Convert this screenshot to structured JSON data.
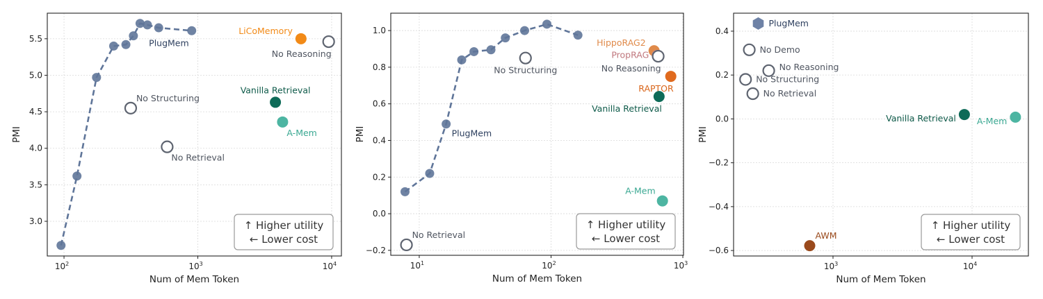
{
  "figure": {
    "note_line1": "↑ Higher utility",
    "note_line2": "← Lower cost"
  },
  "chart_data": [
    {
      "type": "scatter",
      "title": "",
      "xlabel": "Num of Mem Token",
      "ylabel": "PMI",
      "xscale": "log",
      "xlim_log10": [
        1.875,
        4.073
      ],
      "ylim": [
        2.525,
        5.85
      ],
      "xticks": [
        {
          "value": 100,
          "label": "10",
          "exp": "2"
        },
        {
          "value": 1000,
          "label": "10",
          "exp": "3"
        },
        {
          "value": 10000,
          "label": "10",
          "exp": "4"
        }
      ],
      "yticks": [
        3.0,
        3.5,
        4.0,
        4.5,
        5.0,
        5.5
      ],
      "ytick_labels": [
        "3.0",
        "3.5",
        "4.0",
        "4.5",
        "5.0",
        "5.5"
      ],
      "grid": true,
      "annotation_box_position": "bottom-right",
      "curve": {
        "name": "PlugMem",
        "color": "#5f7599",
        "label_color": "#2d3f5e",
        "x": [
          95,
          125,
          175,
          235,
          290,
          330,
          370,
          420,
          510,
          900
        ],
        "y": [
          2.67,
          3.62,
          4.97,
          5.4,
          5.42,
          5.54,
          5.71,
          5.69,
          5.65,
          5.61
        ],
        "label_at_point": 9,
        "label_anchor": "below-left"
      },
      "points": [
        {
          "name": "LiCoMemory",
          "x": 5900,
          "y": 5.5,
          "style": "filled",
          "color": "#f28a17",
          "label_color": "#f28a17",
          "label_pos": "left-up"
        },
        {
          "name": "No Reasoning",
          "x": 9500,
          "y": 5.46,
          "style": "hollow",
          "color": "#5e6470",
          "label_color": "#4f5560",
          "label_pos": "below-left"
        },
        {
          "name": "Vanilla Retrieval",
          "x": 3800,
          "y": 4.63,
          "style": "filled",
          "color": "#0e6b58",
          "label_color": "#0e5a49",
          "label_pos": "above"
        },
        {
          "name": "A-Mem",
          "x": 4300,
          "y": 4.36,
          "style": "filled",
          "color": "#4db5a2",
          "label_color": "#3aa892",
          "label_pos": "below-right"
        },
        {
          "name": "No Structuring",
          "x": 315,
          "y": 4.55,
          "style": "hollow",
          "color": "#5e6470",
          "label_color": "#4f5560",
          "label_pos": "above-right"
        },
        {
          "name": "No Retrieval",
          "x": 590,
          "y": 4.02,
          "style": "hollow",
          "color": "#5e6470",
          "label_color": "#4f5560",
          "label_pos": "below-right"
        }
      ]
    },
    {
      "type": "scatter",
      "title": "",
      "xlabel": "Num of Mem Token",
      "ylabel": "PMI",
      "xscale": "log",
      "xlim_log10": [
        0.784,
        3.005
      ],
      "ylim": [
        -0.227,
        1.095
      ],
      "xticks": [
        {
          "value": 10,
          "label": "10",
          "exp": "1"
        },
        {
          "value": 100,
          "label": "10",
          "exp": "2"
        },
        {
          "value": 1000,
          "label": "10",
          "exp": "3"
        }
      ],
      "yticks": [
        -0.2,
        0.0,
        0.2,
        0.4,
        0.6,
        0.8,
        1.0
      ],
      "ytick_labels": [
        "−0.2",
        "0.0",
        "0.2",
        "0.4",
        "0.6",
        "0.8",
        "1.0"
      ],
      "grid": true,
      "annotation_box_position": "bottom-right",
      "curve": {
        "name": "PlugMem",
        "color": "#5f7599",
        "label_color": "#2d3f5e",
        "x": [
          7.8,
          12,
          16,
          21,
          26,
          35,
          45,
          63,
          93,
          160
        ],
        "y": [
          0.12,
          0.22,
          0.49,
          0.84,
          0.885,
          0.895,
          0.96,
          1.0,
          1.035,
          0.975
        ],
        "label_at_point": 2,
        "label_anchor": "below-right"
      },
      "points": [
        {
          "name": "HippoRAG2",
          "x": 605,
          "y": 0.89,
          "style": "filled",
          "color": "#e08a4a",
          "label_color": "#e08a4a",
          "label_pos": "left-up"
        },
        {
          "name": "PropRAG",
          "x": 640,
          "y": 0.865,
          "style": "filled",
          "color": "#c88a8e",
          "label_color": "#c0787e",
          "label_pos": "left"
        },
        {
          "name": "No Reasoning",
          "x": 650,
          "y": 0.86,
          "style": "hollow",
          "color": "#5e6470",
          "label_color": "#4f5560",
          "label_pos": "below-left"
        },
        {
          "name": "RAPTOR",
          "x": 810,
          "y": 0.75,
          "style": "filled",
          "color": "#e06a1e",
          "label_color": "#d9651a",
          "label_pos": "below-left"
        },
        {
          "name": "Vanilla Retrieval",
          "x": 660,
          "y": 0.64,
          "style": "filled",
          "color": "#0e6b58",
          "label_color": "#0e5a49",
          "label_pos": "below-left"
        },
        {
          "name": "A-Mem",
          "x": 700,
          "y": 0.07,
          "style": "filled",
          "color": "#4db5a2",
          "label_color": "#3aa892",
          "label_pos": "above-left"
        },
        {
          "name": "No Structuring",
          "x": 64,
          "y": 0.85,
          "style": "hollow",
          "color": "#5e6470",
          "label_color": "#4f5560",
          "label_pos": "below"
        },
        {
          "name": "No Retrieval",
          "x": 8.0,
          "y": -0.17,
          "style": "hollow",
          "color": "#5e6470",
          "label_color": "#4f5560",
          "label_pos": "above-right"
        }
      ]
    },
    {
      "type": "scatter",
      "title": "",
      "xlabel": "Num of Mem Token",
      "ylabel": "PMI",
      "xscale": "log",
      "xlim_log10": [
        2.285,
        4.405
      ],
      "ylim": [
        -0.625,
        0.482
      ],
      "xticks": [
        {
          "value": 1000,
          "label": "10",
          "exp": "3"
        },
        {
          "value": 10000,
          "label": "10",
          "exp": "4"
        }
      ],
      "yticks": [
        -0.6,
        -0.4,
        -0.2,
        0.0,
        0.2,
        0.4
      ],
      "ytick_labels": [
        "−0.6",
        "−0.4",
        "−0.2",
        "0.0",
        "0.2",
        "0.4"
      ],
      "grid": true,
      "annotation_box_position": "bottom-right",
      "points": [
        {
          "name": "PlugMem",
          "x": 290,
          "y": 0.435,
          "style": "filled-hex",
          "color": "#6e82a6",
          "label_color": "#2d3f5e",
          "label_pos": "right"
        },
        {
          "name": "No Demo",
          "x": 250,
          "y": 0.315,
          "style": "hollow",
          "color": "#5e6470",
          "label_color": "#4f5560",
          "label_pos": "right"
        },
        {
          "name": "No Reasoning",
          "x": 345,
          "y": 0.22,
          "style": "hollow",
          "color": "#5e6470",
          "label_color": "#4f5560",
          "label_pos": "right-up"
        },
        {
          "name": "No Structuring",
          "x": 235,
          "y": 0.18,
          "style": "hollow",
          "color": "#5e6470",
          "label_color": "#4f5560",
          "label_pos": "right"
        },
        {
          "name": "No Retrieval",
          "x": 265,
          "y": 0.115,
          "style": "hollow",
          "color": "#5e6470",
          "label_color": "#4f5560",
          "label_pos": "right"
        },
        {
          "name": "Vanilla Retrieval",
          "x": 8800,
          "y": 0.02,
          "style": "filled",
          "color": "#0e6b58",
          "label_color": "#0e5a49",
          "label_pos": "left-down"
        },
        {
          "name": "A-Mem",
          "x": 20500,
          "y": 0.008,
          "style": "filled",
          "color": "#4db5a2",
          "label_color": "#3aa892",
          "label_pos": "left-down"
        },
        {
          "name": "AWM",
          "x": 680,
          "y": -0.578,
          "style": "filled",
          "color": "#9a4a1c",
          "label_color": "#9a4a1c",
          "label_pos": "above-right"
        }
      ]
    }
  ]
}
